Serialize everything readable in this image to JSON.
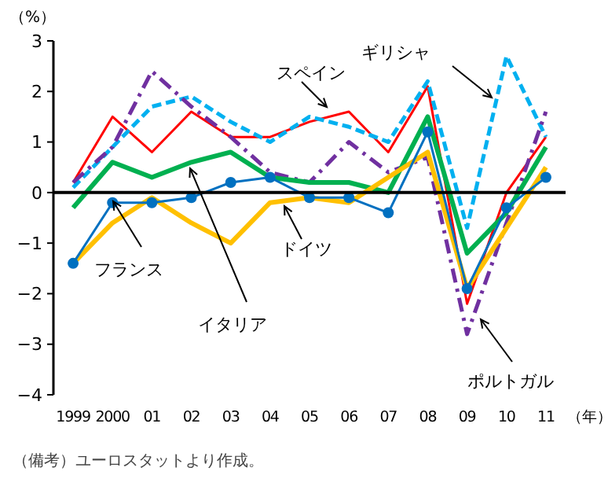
{
  "chart_data": {
    "type": "line",
    "categories": [
      "1999",
      "2000",
      "01",
      "02",
      "03",
      "04",
      "05",
      "06",
      "07",
      "08",
      "09",
      "10",
      "11"
    ],
    "ylabel": "（%）",
    "xlabel": "（年）",
    "ylim": [
      -4,
      3
    ],
    "yticks": [
      -4,
      -3,
      -2,
      -1,
      0,
      1,
      2,
      3
    ],
    "legend": false,
    "series": [
      {
        "name": "スペイン",
        "color": "#ff0000",
        "line_style": "solid",
        "marker": "none",
        "values": [
          0.2,
          1.5,
          0.8,
          1.6,
          1.1,
          1.1,
          1.4,
          1.6,
          0.8,
          2.1,
          -2.2,
          0.0,
          1.1
        ]
      },
      {
        "name": "ギリシャ",
        "color": "#00b0f0",
        "line_style": "dashed",
        "marker": "none",
        "values": [
          0.1,
          0.9,
          1.7,
          1.9,
          1.4,
          1.0,
          1.5,
          1.3,
          1.0,
          2.2,
          -0.7,
          2.7,
          1.1
        ]
      },
      {
        "name": "ポルトガル",
        "color": "#7030a0",
        "line_style": "dashdot",
        "marker": "none",
        "values": [
          0.2,
          0.9,
          2.4,
          1.7,
          1.1,
          0.4,
          0.2,
          1.0,
          0.4,
          0.7,
          -2.8,
          -0.6,
          1.6
        ]
      },
      {
        "name": "イタリア",
        "color": "#00b050",
        "line_style": "solid",
        "marker": "none",
        "values": [
          -0.3,
          0.6,
          0.3,
          0.6,
          0.8,
          0.3,
          0.2,
          0.2,
          0.0,
          1.5,
          -1.2,
          -0.4,
          0.9
        ]
      },
      {
        "name": "ドイツ",
        "color": "#ffc000",
        "line_style": "solid",
        "marker": "none",
        "values": [
          -1.4,
          -0.6,
          -0.1,
          -0.6,
          -1.0,
          -0.2,
          -0.1,
          -0.2,
          0.3,
          0.8,
          -1.9,
          -0.7,
          0.5
        ]
      },
      {
        "name": "フランス",
        "color": "#0070c0",
        "line_style": "solid",
        "marker": "circle",
        "values": [
          -1.4,
          -0.2,
          -0.2,
          -0.1,
          0.2,
          0.3,
          -0.1,
          -0.1,
          -0.4,
          1.2,
          -1.9,
          -0.3,
          0.3
        ]
      }
    ],
    "annotations": [
      "（備考）ユーロスタットより作成。"
    ]
  }
}
